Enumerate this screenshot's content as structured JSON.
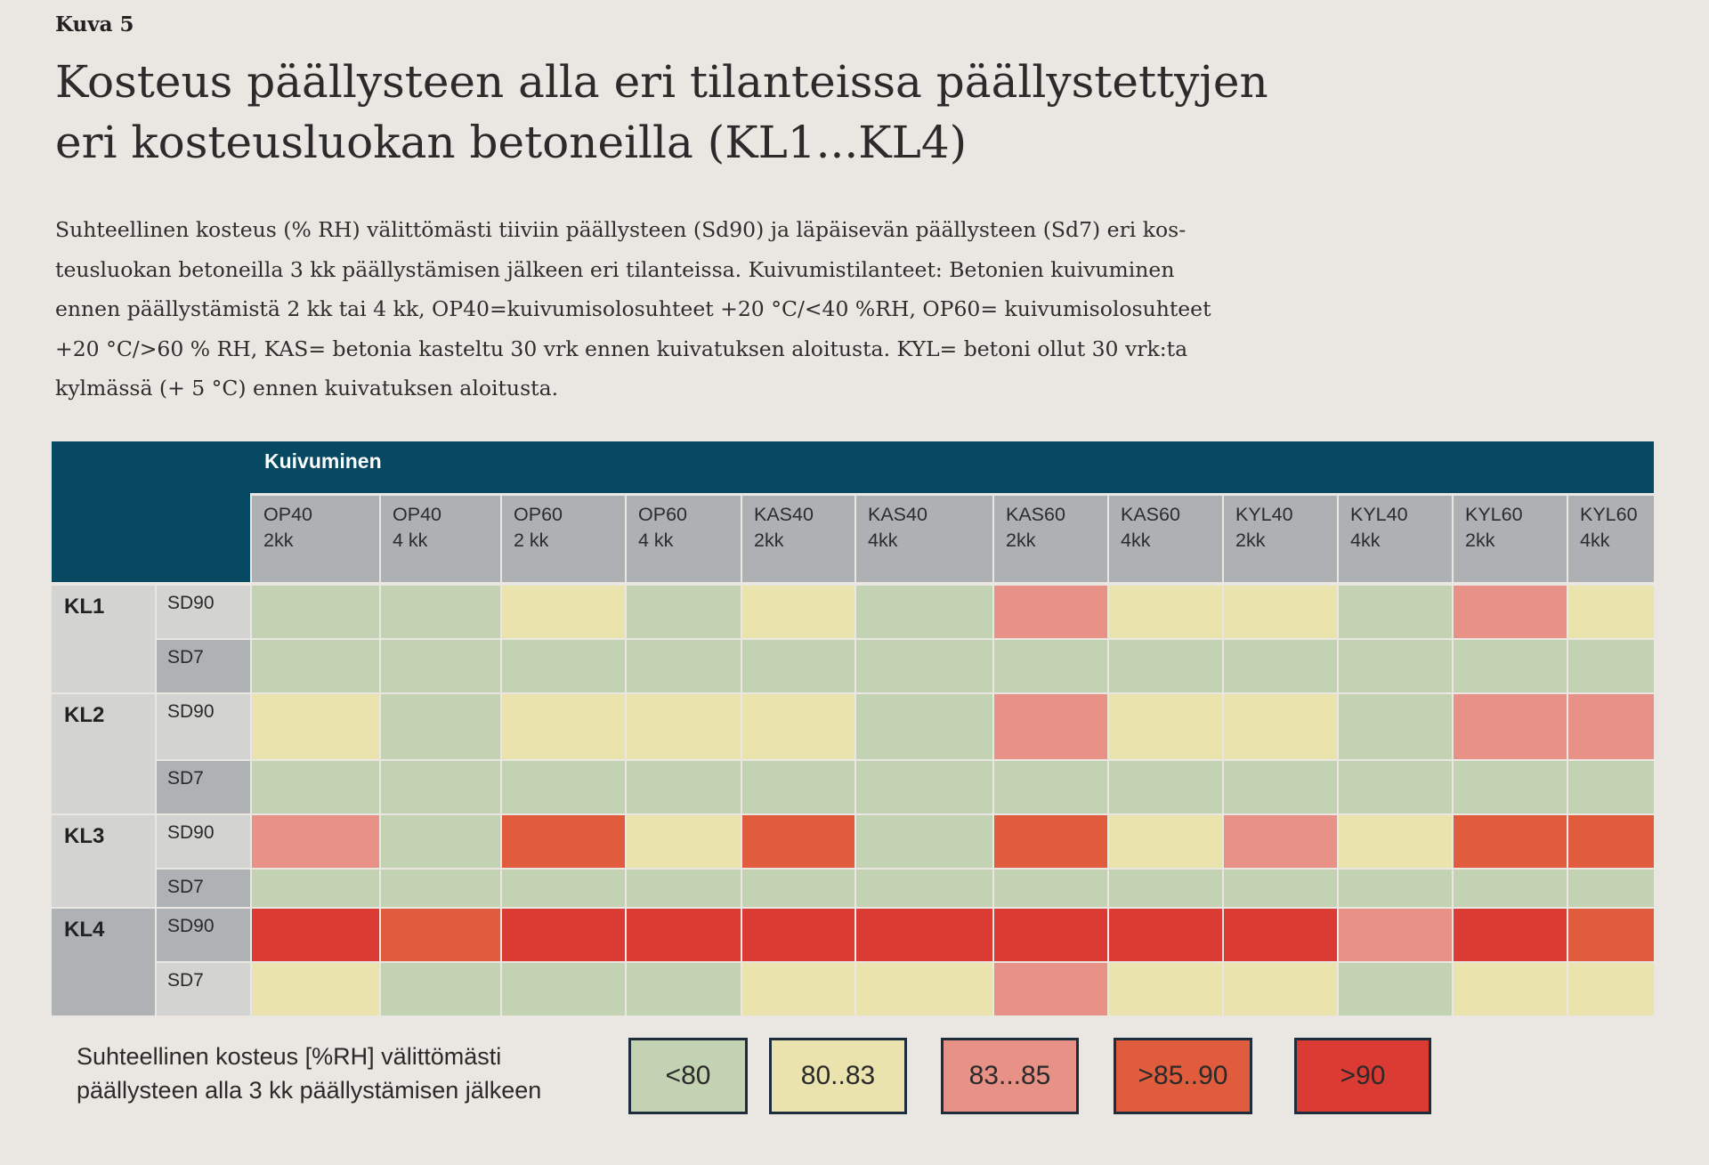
{
  "figure": {
    "label": "Kuva 5",
    "title_lines": [
      "Kosteus päällysteen alla eri tilanteissa päällystettyjen",
      "eri kosteusluokan betoneilla (KL1...KL4)"
    ],
    "description_lines": [
      "Suhteellinen kosteus (% RH) välittömästi tiiviin päällysteen (Sd90) ja läpäisevän päällysteen (Sd7) eri kos-",
      "teusluokan betoneilla 3 kk päällystämisen jälkeen eri tilanteissa. Kuivumistilanteet: Betonien kuivuminen",
      "ennen päällystämistä 2 kk tai 4 kk, OP40=kuivumisolosuhteet +20 °C/<40 %RH, OP60= kuivumisolosuhteet",
      "+20 °C/>60 % RH, KAS= betonia kasteltu 30 vrk ennen kuivatuksen aloitusta. KYL= betoni ollut 30 vrk:ta",
      "kylmässä (+ 5 °C) ennen kuivatuksen aloitusta."
    ]
  },
  "chart_data": {
    "type": "heatmap",
    "column_group_label": "Kuivuminen",
    "columns": [
      [
        "OP40",
        "2kk"
      ],
      [
        "OP40",
        "4 kk"
      ],
      [
        "OP60",
        "2 kk"
      ],
      [
        "OP60",
        "4 kk"
      ],
      [
        "KAS40",
        "2kk"
      ],
      [
        "KAS40",
        "4kk"
      ],
      [
        "KAS60",
        "2kk"
      ],
      [
        "KAS60",
        "4kk"
      ],
      [
        "KYL40",
        "2kk"
      ],
      [
        "KYL40",
        "4kk"
      ],
      [
        "KYL60",
        "2kk"
      ],
      [
        "KYL60",
        "4kk"
      ]
    ],
    "row_groups": [
      {
        "label": "KL1",
        "rows": [
          {
            "label": "SD90",
            "values": [
              "<80",
              "<80",
              "80..83",
              "<80",
              "80..83",
              "<80",
              "83...85",
              "80..83",
              "80..83",
              "<80",
              "83...85",
              "80..83"
            ]
          },
          {
            "label": "SD7",
            "values": [
              "<80",
              "<80",
              "<80",
              "<80",
              "<80",
              "<80",
              "<80",
              "<80",
              "<80",
              "<80",
              "<80",
              "<80"
            ]
          }
        ]
      },
      {
        "label": "KL2",
        "rows": [
          {
            "label": "SD90",
            "values": [
              "80..83",
              "<80",
              "80..83",
              "80..83",
              "80..83",
              "<80",
              "83...85",
              "80..83",
              "80..83",
              "<80",
              "83...85",
              "83...85"
            ]
          },
          {
            "label": "SD7",
            "values": [
              "<80",
              "<80",
              "<80",
              "<80",
              "<80",
              "<80",
              "<80",
              "<80",
              "<80",
              "<80",
              "<80",
              "<80"
            ]
          }
        ]
      },
      {
        "label": "KL3",
        "rows": [
          {
            "label": "SD90",
            "values": [
              "83...85",
              "<80",
              ">85..90",
              "80..83",
              ">85..90",
              "<80",
              ">85..90",
              "80..83",
              "83...85",
              "80..83",
              ">85..90",
              ">85..90"
            ]
          },
          {
            "label": "SD7",
            "values": [
              "<80",
              "<80",
              "<80",
              "<80",
              "<80",
              "<80",
              "<80",
              "<80",
              "<80",
              "<80",
              "<80",
              "<80"
            ]
          }
        ]
      },
      {
        "label": "KL4",
        "rows": [
          {
            "label": "SD90",
            "values": [
              ">90",
              ">85..90",
              ">90",
              ">90",
              ">90",
              ">90",
              ">90",
              ">90",
              ">90",
              "83...85",
              ">90",
              ">85..90"
            ]
          },
          {
            "label": "SD7",
            "values": [
              "80..83",
              "<80",
              "<80",
              "<80",
              "80..83",
              "80..83",
              "83...85",
              "80..83",
              "80..83",
              "<80",
              "80..83",
              "80..83"
            ]
          }
        ]
      }
    ],
    "legend": {
      "title_lines": [
        "Suhteellinen kosteus [%RH] välittömästi",
        "päällysteen alla 3 kk päällystämisen jälkeen"
      ],
      "categories": [
        {
          "label": "<80",
          "color": "#c4d2b4"
        },
        {
          "label": "80..83",
          "color": "#ebe3ad"
        },
        {
          "label": "83...85",
          "color": "#e79187"
        },
        {
          "label": ">85..90",
          "color": "#e05c3c"
        },
        {
          "label": ">90",
          "color": "#dc3b34"
        }
      ]
    },
    "colors": {
      "header_dark": "#074863",
      "header_gray": "#adb1b3",
      "row_light": "#d3d3d1",
      "row_dark": "#aeb2b4",
      "grid_line": "#eae7e2"
    }
  }
}
